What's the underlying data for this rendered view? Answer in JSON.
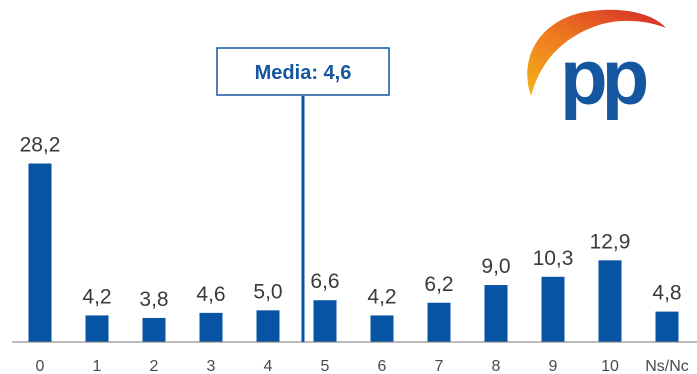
{
  "chart_data": {
    "type": "bar",
    "categories": [
      "0",
      "1",
      "2",
      "3",
      "4",
      "5",
      "6",
      "7",
      "8",
      "9",
      "10",
      "Ns/Nc"
    ],
    "values": [
      28.2,
      4.2,
      3.8,
      4.6,
      5.0,
      6.6,
      4.2,
      6.2,
      9.0,
      10.3,
      12.9,
      4.8
    ],
    "value_labels": [
      "28,2",
      "4,2",
      "3,8",
      "4,6",
      "5,0",
      "6,6",
      "4,2",
      "6,2",
      "9,0",
      "10,3",
      "12,9",
      "4,8"
    ],
    "ylim": [
      0,
      30
    ],
    "grid": false,
    "mean_marker": {
      "label": "Media: 4,6",
      "value": 4.6
    }
  },
  "colors": {
    "bar": "#0754a4",
    "mean_line": "#0754a4",
    "axis": "#7a7a7a",
    "logo_blue": "#1457a0",
    "logo_arc_start": "#f2a21b",
    "logo_arc_end": "#d42a2a"
  },
  "logo": {
    "text": "pp",
    "icon": "pp-party-logo"
  }
}
